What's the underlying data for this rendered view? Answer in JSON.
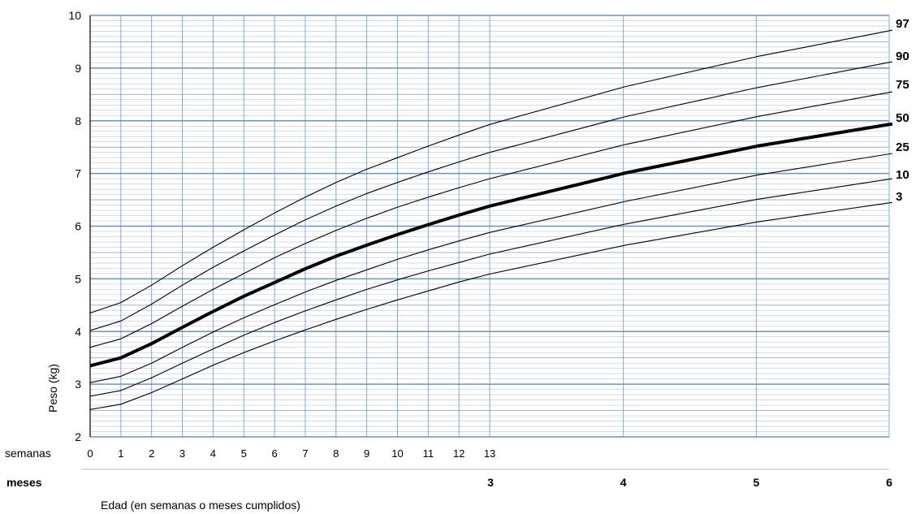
{
  "chart_data": {
    "type": "line",
    "title": "",
    "ylabel": "Peso (kg)",
    "xlabel": "Edad (en semanas o meses cumplidos)",
    "ylim": [
      2,
      10
    ],
    "y_ticks": [
      2,
      3,
      4,
      5,
      6,
      7,
      8,
      9,
      10
    ],
    "week_row_label": "semanas",
    "month_row_label": "meses",
    "x_week_ticks": [
      "0",
      "1",
      "2",
      "3",
      "4",
      "5",
      "6",
      "7",
      "8",
      "9",
      "10",
      "11",
      "12",
      "13"
    ],
    "x_month_ticks": [
      "3",
      "4",
      "5",
      "6"
    ],
    "grid": true,
    "x_unit": "weeks",
    "x": [
      0,
      1,
      2,
      3,
      4,
      5,
      6,
      7,
      8,
      9,
      10,
      11,
      12,
      13,
      17.4,
      21.7,
      26.1
    ],
    "series": [
      {
        "name": "97",
        "emphasis": false,
        "values": [
          4.35,
          4.55,
          4.88,
          5.25,
          5.6,
          5.93,
          6.25,
          6.55,
          6.83,
          7.08,
          7.3,
          7.52,
          7.73,
          7.93,
          8.65,
          9.22,
          9.72
        ]
      },
      {
        "name": "90",
        "emphasis": false,
        "values": [
          4.02,
          4.2,
          4.52,
          4.88,
          5.22,
          5.53,
          5.83,
          6.12,
          6.38,
          6.62,
          6.83,
          7.03,
          7.22,
          7.4,
          8.08,
          8.63,
          9.12
        ]
      },
      {
        "name": "75",
        "emphasis": false,
        "values": [
          3.7,
          3.86,
          4.15,
          4.48,
          4.8,
          5.1,
          5.4,
          5.67,
          5.92,
          6.15,
          6.36,
          6.55,
          6.73,
          6.9,
          7.55,
          8.08,
          8.55
        ]
      },
      {
        "name": "50",
        "emphasis": true,
        "values": [
          3.35,
          3.5,
          3.77,
          4.08,
          4.38,
          4.67,
          4.93,
          5.19,
          5.43,
          5.64,
          5.84,
          6.03,
          6.21,
          6.38,
          7.01,
          7.52,
          7.94
        ]
      },
      {
        "name": "25",
        "emphasis": false,
        "values": [
          3.03,
          3.15,
          3.4,
          3.7,
          3.99,
          4.26,
          4.51,
          4.75,
          4.97,
          5.17,
          5.37,
          5.55,
          5.72,
          5.88,
          6.47,
          6.97,
          7.38
        ]
      },
      {
        "name": "10",
        "emphasis": false,
        "values": [
          2.77,
          2.88,
          3.12,
          3.4,
          3.67,
          3.93,
          4.17,
          4.39,
          4.6,
          4.8,
          4.98,
          5.15,
          5.31,
          5.47,
          6.04,
          6.51,
          6.9
        ]
      },
      {
        "name": "3",
        "emphasis": false,
        "values": [
          2.52,
          2.62,
          2.84,
          3.1,
          3.36,
          3.6,
          3.82,
          4.03,
          4.23,
          4.42,
          4.6,
          4.77,
          4.94,
          5.09,
          5.64,
          6.08,
          6.45
        ]
      }
    ]
  }
}
